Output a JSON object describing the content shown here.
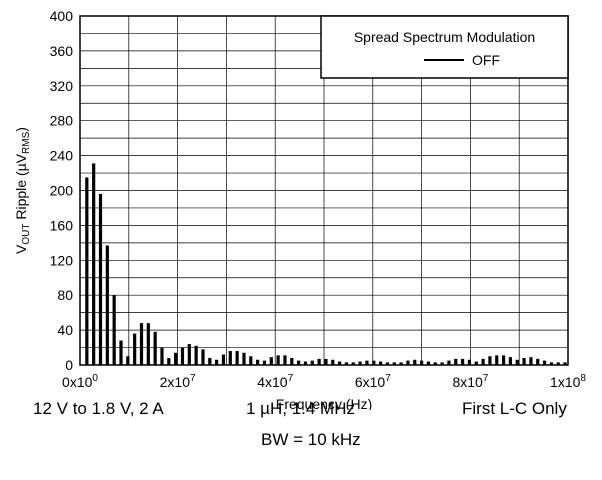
{
  "chart_data": {
    "type": "bar",
    "xlabel": "Frequency (Hz)",
    "ylabel": {
      "main": "V",
      "sub1": "OUT",
      "mid": " Ripple (µV",
      "sub2": "RMS",
      "end": ")"
    },
    "xlim": [
      0,
      100000000
    ],
    "ylim": [
      0,
      400
    ],
    "grid": true,
    "yticks": [
      0,
      40,
      80,
      120,
      160,
      200,
      240,
      280,
      320,
      360,
      400
    ],
    "yticklabels": [
      "0",
      "40",
      "80",
      "120",
      "160",
      "200",
      "240",
      "280",
      "320",
      "360",
      "400"
    ],
    "xticks": [
      {
        "value": 0,
        "base": "0x10",
        "exp": "0"
      },
      {
        "value": 20000000,
        "base": "2x10",
        "exp": "7"
      },
      {
        "value": 40000000,
        "base": "4x10",
        "exp": "7"
      },
      {
        "value": 60000000,
        "base": "6x10",
        "exp": "7"
      },
      {
        "value": 80000000,
        "base": "8x10",
        "exp": "7"
      },
      {
        "value": 100000000,
        "base": "1x10",
        "exp": "8"
      }
    ],
    "legend": {
      "title": "Spread Spectrum Modulation",
      "position": "top-right",
      "entries": [
        {
          "name": "OFF",
          "color": "#000000"
        }
      ]
    },
    "series": [
      {
        "name": "OFF",
        "color": "#000000",
        "x": [
          1400000,
          2800000,
          4200000,
          5600000,
          7000000,
          8400000,
          9800000,
          11200000,
          12600000,
          14000000,
          15400000,
          16800000,
          18200000,
          19600000,
          21000000,
          22400000,
          23800000,
          25200000,
          26600000,
          28000000,
          29400000,
          30800000,
          32200000,
          33600000,
          35000000,
          36400000,
          37800000,
          39200000,
          40600000,
          42000000,
          43400000,
          44800000,
          46200000,
          47600000,
          49000000,
          50400000,
          51800000,
          53200000,
          54600000,
          56000000,
          57400000,
          58800000,
          60200000,
          61600000,
          63000000,
          64400000,
          65800000,
          67200000,
          68600000,
          70000000,
          71400000,
          72800000,
          74200000,
          75600000,
          77000000,
          78400000,
          79800000,
          81200000,
          82600000,
          84000000,
          85400000,
          86800000,
          88200000,
          89600000,
          91000000,
          92400000,
          93800000,
          95200000,
          96600000,
          98000000,
          99400000
        ],
        "values": [
          215,
          231,
          196,
          137,
          80,
          28,
          10,
          36,
          48,
          48,
          38,
          20,
          8,
          14,
          20,
          24,
          22,
          18,
          8,
          6,
          12,
          16,
          16,
          14,
          10,
          6,
          5,
          9,
          11,
          11,
          8,
          5,
          4,
          5,
          7,
          7,
          6,
          4,
          3,
          3,
          4,
          5,
          5,
          4,
          3,
          3,
          3,
          5,
          6,
          5,
          4,
          3,
          3,
          5,
          7,
          7,
          6,
          4,
          7,
          10,
          11,
          11,
          9,
          6,
          8,
          9,
          7,
          5,
          3,
          3,
          3
        ]
      }
    ]
  },
  "captions": {
    "conditions": "12 V to 1.8 V, 2 A",
    "inductor": "1 µH, 1.4 MHz",
    "filter": "First L-C Only",
    "bandwidth": "BW = 10 kHz"
  }
}
